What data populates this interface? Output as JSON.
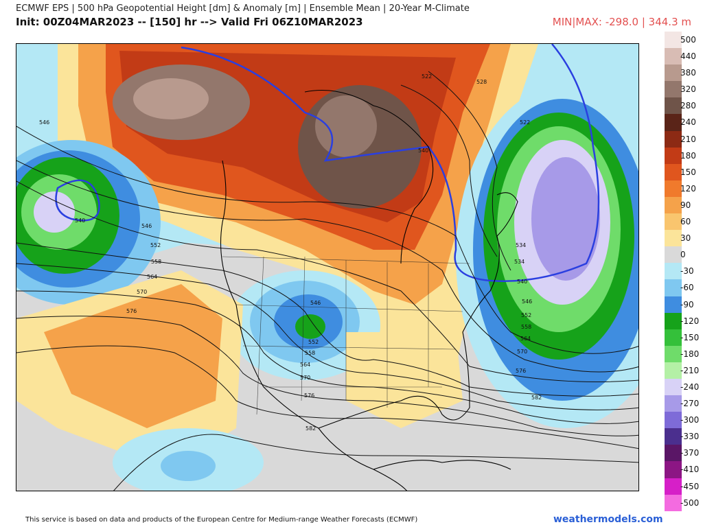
{
  "header": {
    "line1": "ECMWF EPS | 500 hPa Geopotential Height [dm] & Anomaly [m] | Ensemble Mean | 20-Year M-Climate",
    "line2": "Init: 00Z04MAR2023 -- [150] hr --> Valid Fri 06Z10MAR2023",
    "minmax": "MIN|MAX: -298.0 | 344.3 m"
  },
  "footer": {
    "disclaimer": "This service is based on data and products of the European Centre for Medium-range Weather Forecasts (ECMWF)",
    "brand": "weathermodels.com"
  },
  "colorbar": [
    {
      "label": "500",
      "color": "#f3e6e4"
    },
    {
      "label": "440",
      "color": "#d8bcb4"
    },
    {
      "label": "380",
      "color": "#b89a8e"
    },
    {
      "label": "320",
      "color": "#93776c"
    },
    {
      "label": "280",
      "color": "#6f5449"
    },
    {
      "label": "240",
      "color": "#5a2418"
    },
    {
      "label": "210",
      "color": "#8c2a14"
    },
    {
      "label": "180",
      "color": "#c23b16"
    },
    {
      "label": "150",
      "color": "#e0561e"
    },
    {
      "label": "120",
      "color": "#f07a2c"
    },
    {
      "label": "90",
      "color": "#f5a24a"
    },
    {
      "label": "60",
      "color": "#f9c56e"
    },
    {
      "label": "30",
      "color": "#fbe49a"
    },
    {
      "label": "0",
      "color": "#d9d9d9"
    },
    {
      "label": "-30",
      "color": "#b4e8f5"
    },
    {
      "label": "-60",
      "color": "#7fc8f0"
    },
    {
      "label": "-90",
      "color": "#3f8de0"
    },
    {
      "label": "-120",
      "color": "#16a21a"
    },
    {
      "label": "-150",
      "color": "#34c03a"
    },
    {
      "label": "-180",
      "color": "#6fdc6a"
    },
    {
      "label": "-210",
      "color": "#b4f0a6"
    },
    {
      "label": "-240",
      "color": "#d8d2f6"
    },
    {
      "label": "-270",
      "color": "#a79ae8"
    },
    {
      "label": "-300",
      "color": "#7e6bd8"
    },
    {
      "label": "-330",
      "color": "#4b2f8e"
    },
    {
      "label": "-370",
      "color": "#5a1666"
    },
    {
      "label": "-410",
      "color": "#8c1684"
    },
    {
      "label": "-450",
      "color": "#d61fc8"
    },
    {
      "label": "-500",
      "color": "#f46be0"
    }
  ],
  "contour_labels": [
    "522",
    "528",
    "534",
    "540",
    "546",
    "552",
    "558",
    "564",
    "570",
    "576",
    "582"
  ]
}
